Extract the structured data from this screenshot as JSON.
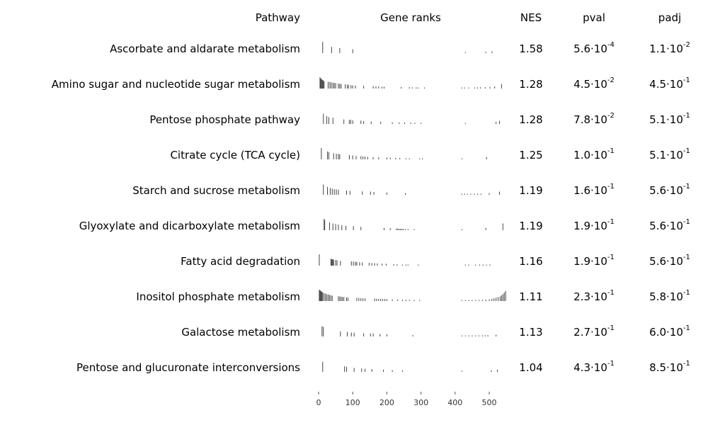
{
  "chart_data": {
    "type": "table",
    "headers": {
      "pathway": "Pathway",
      "ranks": "Gene ranks",
      "nes": "NES",
      "pval": "pval",
      "padj": "padj"
    },
    "x_ticks": [
      0,
      100,
      200,
      300,
      400,
      500
    ],
    "xlim": [
      0,
      550
    ],
    "rows": [
      {
        "pathway": "Ascorbate and aldarate metabolism",
        "nes": "1.58",
        "pval_m": "5.6",
        "pval_e": "-4",
        "padj_m": "1.1",
        "padj_e": "-2",
        "ranks": [
          12,
          38,
          62,
          100,
          430,
          490,
          508
        ],
        "heights": [
          1.0,
          0.55,
          0.45,
          0.35,
          0.08,
          0.12,
          0.15
        ]
      },
      {
        "pathway": "Amino sugar and nucleotide sugar metabolism",
        "nes": "1.28",
        "pval_m": "4.5",
        "pval_e": "-2",
        "padj_m": "4.5",
        "padj_e": "-1",
        "ranks": [
          4,
          6,
          8,
          10,
          12,
          14,
          16,
          28,
          33,
          37,
          42,
          46,
          50,
          58,
          62,
          66,
          78,
          84,
          88,
          95,
          100,
          108,
          132,
          160,
          168,
          176,
          186,
          192,
          242,
          266,
          274,
          286,
          292,
          310,
          420,
          428,
          440,
          458,
          466,
          474,
          488,
          502,
          516,
          536
        ],
        "heights": [
          1.0,
          0.9,
          0.85,
          0.8,
          0.75,
          0.7,
          0.65,
          0.6,
          0.58,
          0.55,
          0.52,
          0.5,
          0.48,
          0.45,
          0.42,
          0.4,
          0.38,
          0.35,
          0.33,
          0.3,
          0.28,
          0.26,
          0.24,
          0.22,
          0.2,
          0.18,
          0.16,
          0.15,
          0.14,
          0.12,
          0.1,
          0.1,
          0.09,
          0.08,
          0.06,
          0.07,
          0.08,
          0.09,
          0.1,
          0.11,
          0.12,
          0.14,
          0.18,
          0.4
        ]
      },
      {
        "pathway": "Pentose phosphate pathway",
        "nes": "1.28",
        "pval_m": "7.8",
        "pval_e": "-2",
        "padj_m": "5.1",
        "padj_e": "-1",
        "ranks": [
          14,
          24,
          30,
          42,
          74,
          90,
          94,
          100,
          124,
          132,
          154,
          182,
          216,
          236,
          252,
          270,
          282,
          300,
          430,
          520,
          530
        ],
        "heights": [
          0.9,
          0.7,
          0.6,
          0.55,
          0.4,
          0.35,
          0.38,
          0.32,
          0.3,
          0.25,
          0.22,
          0.2,
          0.15,
          0.14,
          0.12,
          0.12,
          0.1,
          0.08,
          0.06,
          0.2,
          0.28
        ]
      },
      {
        "pathway": "Citrate cycle (TCA cycle)",
        "nes": "1.25",
        "pval_m": "1.0",
        "pval_e": "-1",
        "padj_m": "5.1",
        "padj_e": "-1",
        "ranks": [
          8,
          26,
          30,
          44,
          52,
          58,
          62,
          90,
          100,
          110,
          124,
          130,
          136,
          144,
          160,
          176,
          200,
          210,
          226,
          238,
          256,
          266,
          296,
          304,
          420,
          492
        ],
        "heights": [
          1.0,
          0.7,
          0.65,
          0.55,
          0.5,
          0.48,
          0.45,
          0.38,
          0.35,
          0.3,
          0.28,
          0.26,
          0.25,
          0.22,
          0.2,
          0.18,
          0.16,
          0.15,
          0.13,
          0.12,
          0.1,
          0.1,
          0.08,
          0.07,
          0.05,
          0.2
        ]
      },
      {
        "pathway": "Starch and sucrose metabolism",
        "nes": "1.19",
        "pval_m": "1.6",
        "pval_e": "-1",
        "padj_m": "5.6",
        "padj_e": "-1",
        "ranks": [
          14,
          26,
          34,
          40,
          46,
          52,
          58,
          82,
          92,
          128,
          152,
          162,
          200,
          254,
          420,
          428,
          436,
          446,
          456,
          466,
          476,
          500,
          530
        ],
        "heights": [
          0.9,
          0.7,
          0.6,
          0.55,
          0.5,
          0.48,
          0.45,
          0.38,
          0.35,
          0.3,
          0.28,
          0.25,
          0.2,
          0.15,
          0.06,
          0.07,
          0.08,
          0.08,
          0.09,
          0.1,
          0.1,
          0.15,
          0.28
        ]
      },
      {
        "pathway": "Glyoxylate and dicarboxylate metabolism",
        "nes": "1.19",
        "pval_m": "1.9",
        "pval_e": "-1",
        "padj_m": "5.6",
        "padj_e": "-1",
        "ranks": [
          16,
          18,
          32,
          42,
          50,
          58,
          68,
          80,
          102,
          124,
          192,
          210,
          228,
          232,
          236,
          240,
          244,
          248,
          254,
          262,
          280,
          420,
          490,
          540
        ],
        "heights": [
          1.0,
          0.9,
          0.7,
          0.6,
          0.55,
          0.5,
          0.45,
          0.4,
          0.35,
          0.3,
          0.2,
          0.18,
          0.15,
          0.14,
          0.13,
          0.12,
          0.12,
          0.11,
          0.1,
          0.1,
          0.08,
          0.06,
          0.2,
          0.6
        ]
      },
      {
        "pathway": "Fatty acid degradation",
        "nes": "1.16",
        "pval_m": "1.9",
        "pval_e": "-1",
        "padj_m": "5.6",
        "padj_e": "-1",
        "ranks": [
          2,
          36,
          38,
          40,
          42,
          44,
          50,
          54,
          64,
          96,
          102,
          108,
          112,
          120,
          128,
          148,
          156,
          164,
          172,
          186,
          198,
          220,
          230,
          246,
          256,
          262,
          292,
          430,
          440,
          460,
          472,
          482,
          492,
          502
        ],
        "heights": [
          1.0,
          0.6,
          0.58,
          0.56,
          0.55,
          0.52,
          0.5,
          0.48,
          0.42,
          0.38,
          0.36,
          0.35,
          0.33,
          0.3,
          0.28,
          0.25,
          0.23,
          0.22,
          0.2,
          0.18,
          0.16,
          0.14,
          0.12,
          0.1,
          0.09,
          0.08,
          0.07,
          0.05,
          0.06,
          0.07,
          0.07,
          0.08,
          0.09,
          0.1
        ]
      },
      {
        "pathway": "Inositol phosphate metabolism",
        "nes": "1.11",
        "pval_m": "2.3",
        "pval_e": "-1",
        "padj_m": "5.8",
        "padj_e": "-1",
        "ranks": [
          2,
          4,
          6,
          8,
          10,
          12,
          16,
          20,
          24,
          28,
          32,
          36,
          40,
          58,
          62,
          66,
          70,
          74,
          82,
          86,
          112,
          118,
          124,
          130,
          136,
          164,
          170,
          176,
          182,
          188,
          194,
          200,
          216,
          232,
          246,
          256,
          266,
          280,
          296,
          420,
          430,
          440,
          450,
          460,
          470,
          480,
          490,
          500,
          508,
          514,
          520,
          526,
          532,
          536,
          540,
          544,
          548
        ],
        "heights": [
          1.0,
          0.95,
          0.9,
          0.85,
          0.8,
          0.75,
          0.7,
          0.65,
          0.6,
          0.58,
          0.55,
          0.5,
          0.48,
          0.42,
          0.4,
          0.38,
          0.36,
          0.35,
          0.33,
          0.3,
          0.28,
          0.27,
          0.26,
          0.25,
          0.24,
          0.22,
          0.21,
          0.2,
          0.2,
          0.19,
          0.18,
          0.17,
          0.15,
          0.14,
          0.13,
          0.12,
          0.11,
          0.1,
          0.08,
          0.05,
          0.06,
          0.07,
          0.08,
          0.09,
          0.1,
          0.12,
          0.14,
          0.16,
          0.2,
          0.25,
          0.3,
          0.35,
          0.4,
          0.5,
          0.6,
          0.75,
          0.9
        ]
      },
      {
        "pathway": "Galactose metabolism",
        "nes": "1.13",
        "pval_m": "2.7",
        "pval_e": "-1",
        "padj_m": "6.0",
        "padj_e": "-1",
        "ranks": [
          10,
          14,
          64,
          84,
          96,
          104,
          132,
          152,
          160,
          180,
          200,
          276,
          420,
          430,
          440,
          450,
          460,
          470,
          480,
          488,
          496,
          520
        ],
        "heights": [
          0.9,
          0.85,
          0.45,
          0.4,
          0.35,
          0.33,
          0.28,
          0.26,
          0.25,
          0.22,
          0.2,
          0.12,
          0.06,
          0.07,
          0.07,
          0.08,
          0.08,
          0.09,
          0.1,
          0.1,
          0.11,
          0.15
        ]
      },
      {
        "pathway": "Pentose and glucuronate interconversions",
        "nes": "1.04",
        "pval_m": "4.3",
        "pval_e": "-1",
        "padj_m": "8.5",
        "padj_e": "-1",
        "ranks": [
          12,
          76,
          82,
          104,
          126,
          136,
          156,
          190,
          216,
          246,
          420,
          506,
          524
        ],
        "heights": [
          0.9,
          0.5,
          0.45,
          0.35,
          0.3,
          0.28,
          0.25,
          0.2,
          0.16,
          0.14,
          0.05,
          0.15,
          0.2
        ]
      }
    ]
  }
}
